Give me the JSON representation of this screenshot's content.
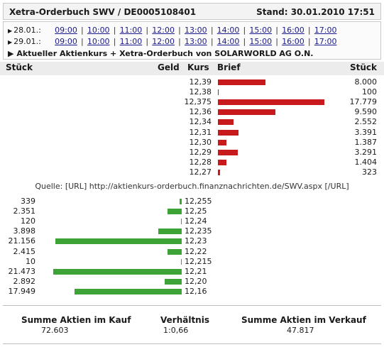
{
  "header": {
    "title": "Xetra-Orderbuch SWV / DE0005108401",
    "stand": "Stand: 30.01.2010 17:51"
  },
  "nav": {
    "rows": [
      {
        "date": "28.01.:",
        "times": [
          "09:00",
          "10:00",
          "11:00",
          "12:00",
          "13:00",
          "14:00",
          "15:00",
          "16:00",
          "17:00"
        ]
      },
      {
        "date": "29.01.:",
        "times": [
          "09:00",
          "10:00",
          "11:00",
          "12:00",
          "13:00",
          "14:00",
          "15:00",
          "16:00",
          "17:00"
        ]
      }
    ],
    "current_title": "Aktueller Aktienkurs + Xetra-Orderbuch von SOLARWORLD AG O.N.",
    "separator": "|"
  },
  "columns": {
    "stueck_left": "Stück",
    "geld": "Geld",
    "kurs": "Kurs",
    "brief": "Brief",
    "stueck_right": "Stück"
  },
  "ask": [
    {
      "kurs": "12,39",
      "stueck": "8.000",
      "value": 8000
    },
    {
      "kurs": "12,38",
      "stueck": "100",
      "value": 100
    },
    {
      "kurs": "12,375",
      "stueck": "17.779",
      "value": 17779
    },
    {
      "kurs": "12,36",
      "stueck": "9.590",
      "value": 9590
    },
    {
      "kurs": "12,34",
      "stueck": "2.552",
      "value": 2552
    },
    {
      "kurs": "12,31",
      "stueck": "3.391",
      "value": 3391
    },
    {
      "kurs": "12,30",
      "stueck": "1.387",
      "value": 1387
    },
    {
      "kurs": "12,29",
      "stueck": "3.291",
      "value": 3291
    },
    {
      "kurs": "12,28",
      "stueck": "1.404",
      "value": 1404
    },
    {
      "kurs": "12,27",
      "stueck": "323",
      "value": 323
    }
  ],
  "source": "Quelle: [URL] http://aktienkurs-orderbuch.finanznachrichten.de/SWV.aspx [/URL]",
  "bid": [
    {
      "kurs": "12,255",
      "stueck": "339",
      "value": 339
    },
    {
      "kurs": "12,25",
      "stueck": "2.351",
      "value": 2351
    },
    {
      "kurs": "12,24",
      "stueck": "120",
      "value": 120
    },
    {
      "kurs": "12,235",
      "stueck": "3.898",
      "value": 3898
    },
    {
      "kurs": "12,23",
      "stueck": "21.156",
      "value": 21156
    },
    {
      "kurs": "12,22",
      "stueck": "2.415",
      "value": 2415
    },
    {
      "kurs": "12,215",
      "stueck": "10",
      "value": 10
    },
    {
      "kurs": "12,21",
      "stueck": "21.473",
      "value": 21473
    },
    {
      "kurs": "12,20",
      "stueck": "2.892",
      "value": 2892
    },
    {
      "kurs": "12,16",
      "stueck": "17.949",
      "value": 17949
    }
  ],
  "summary": {
    "kauf_label": "Summe Aktien im Kauf",
    "kauf_value": "72.603",
    "verhaeltnis_label": "Verhältnis",
    "verhaeltnis_value": "1:0,66",
    "verkauf_label": "Summe Aktien im Verkauf",
    "verkauf_value": "47.817"
  },
  "colors": {
    "ask_bar": "#c8191d",
    "bid_bar": "#3ea336",
    "link": "#1a1a8c"
  }
}
